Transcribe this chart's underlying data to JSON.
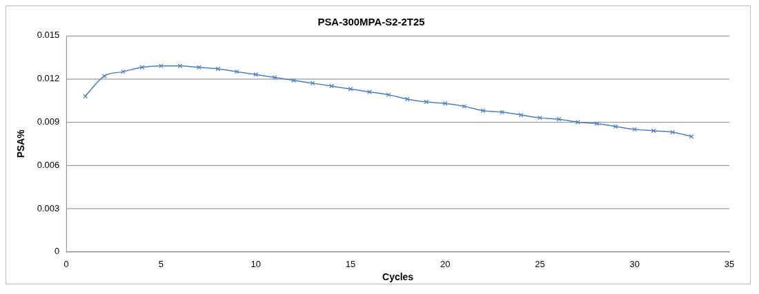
{
  "chart_data": {
    "type": "line",
    "title": "PSA-300MPA-S2-2T25",
    "xlabel": "Cycles",
    "ylabel": "PSA%",
    "x": [
      1,
      2,
      3,
      4,
      5,
      6,
      7,
      8,
      9,
      10,
      11,
      12,
      13,
      14,
      15,
      16,
      17,
      18,
      19,
      20,
      21,
      22,
      23,
      24,
      25,
      26,
      27,
      28,
      29,
      30,
      31,
      32,
      33
    ],
    "series": [
      {
        "color": "#4a7ebb",
        "values": [
          0.0108,
          0.0122,
          0.0125,
          0.0128,
          0.0129,
          0.0129,
          0.0128,
          0.0127,
          0.0125,
          0.0123,
          0.0121,
          0.0119,
          0.0117,
          0.0115,
          0.0113,
          0.0111,
          0.0109,
          0.0106,
          0.0104,
          0.0103,
          0.0101,
          0.0098,
          0.0097,
          0.0095,
          0.0093,
          0.0092,
          0.009,
          0.0089,
          0.0087,
          0.0085,
          0.0084,
          0.0083,
          0.008
        ]
      }
    ],
    "xlim": [
      0,
      35
    ],
    "xticks": [
      0,
      5,
      10,
      15,
      20,
      25,
      30,
      35
    ],
    "ylim": [
      0,
      0.015
    ],
    "yticks": [
      {
        "value": 0,
        "label": "0"
      },
      {
        "value": 0.003,
        "label": "0.003"
      },
      {
        "value": 0.006,
        "label": "0.006"
      },
      {
        "value": 0.009,
        "label": "0.009"
      },
      {
        "value": 0.012,
        "label": "0.012"
      },
      {
        "value": 0.015,
        "label": "0.015"
      }
    ],
    "grid": "y",
    "legend": false,
    "marker": "cross",
    "line_style": "solid"
  }
}
